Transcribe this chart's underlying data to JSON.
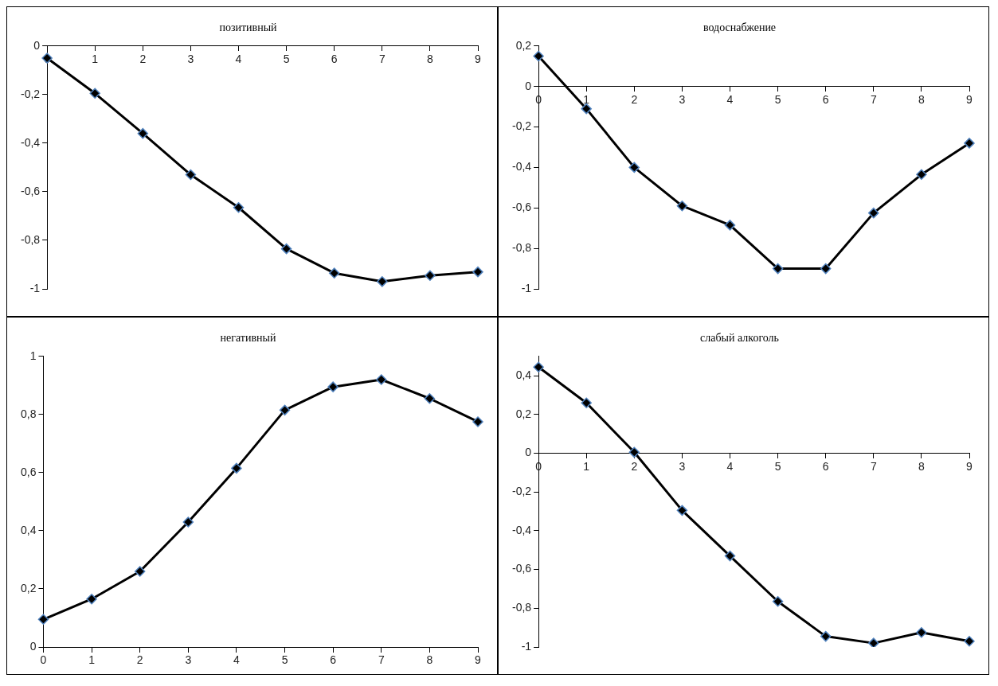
{
  "chart_data": [
    {
      "type": "line",
      "title": "позитивный",
      "categories": [
        "0",
        "1",
        "2",
        "3",
        "4",
        "5",
        "6",
        "7",
        "8",
        "9"
      ],
      "values": [
        -0.05,
        -0.195,
        -0.36,
        -0.53,
        -0.665,
        -0.835,
        -0.935,
        -0.97,
        -0.945,
        -0.93
      ],
      "color": "#000000",
      "ylim": [
        -1,
        0
      ],
      "yticks": [
        -1,
        {
          "value": -0.8,
          "label": "-0,8"
        },
        {
          "value": -0.6,
          "label": "-0,6"
        },
        {
          "value": -0.4,
          "label": "-0,4"
        },
        {
          "value": -0.2,
          "label": "-0,2"
        },
        0
      ],
      "marker": "diamond",
      "line_style": "solid"
    },
    {
      "type": "line",
      "title": "водоснабжение",
      "categories": [
        "0",
        "1",
        "2",
        "3",
        "4",
        "5",
        "6",
        "7",
        "8",
        "9"
      ],
      "values": [
        0.15,
        -0.11,
        -0.4,
        -0.59,
        -0.685,
        -0.9,
        -0.9,
        -0.625,
        -0.435,
        -0.28
      ],
      "color": "#000000",
      "ylim": [
        -1,
        0.2
      ],
      "yticks": [
        -1,
        {
          "value": -0.8,
          "label": "-0,8"
        },
        {
          "value": -0.6,
          "label": "-0,6"
        },
        {
          "value": -0.4,
          "label": "-0,4"
        },
        {
          "value": -0.2,
          "label": "-0,2"
        },
        0,
        {
          "value": 0.2,
          "label": "0,2"
        }
      ],
      "marker": "diamond",
      "line_style": "solid"
    },
    {
      "type": "line",
      "title": "негативный",
      "categories": [
        "0",
        "1",
        "2",
        "3",
        "4",
        "5",
        "6",
        "7",
        "8",
        "9"
      ],
      "values": [
        0.095,
        0.165,
        0.26,
        0.43,
        0.615,
        0.815,
        0.895,
        0.92,
        0.855,
        0.775
      ],
      "color": "#000000",
      "ylim": [
        0,
        1
      ],
      "yticks": [
        0,
        {
          "value": 0.2,
          "label": "0,2"
        },
        {
          "value": 0.4,
          "label": "0,4"
        },
        {
          "value": 0.6,
          "label": "0,6"
        },
        {
          "value": 0.8,
          "label": "0,8"
        },
        1
      ],
      "marker": "diamond",
      "line_style": "solid"
    },
    {
      "type": "line",
      "title": "слабый алкоголь",
      "categories": [
        "0",
        "1",
        "2",
        "3",
        "4",
        "5",
        "6",
        "7",
        "8",
        "9"
      ],
      "values": [
        0.445,
        0.26,
        0.005,
        -0.295,
        -0.53,
        -0.765,
        -0.945,
        -0.98,
        -0.925,
        -0.97
      ],
      "color": "#000000",
      "ylim": [
        -1,
        0.5
      ],
      "yticks": [
        -1,
        {
          "value": -0.8,
          "label": "-0,8"
        },
        {
          "value": -0.6,
          "label": "-0,6"
        },
        {
          "value": -0.4,
          "label": "-0,4"
        },
        {
          "value": -0.2,
          "label": "-0,2"
        },
        0,
        {
          "value": 0.2,
          "label": "0,2"
        },
        {
          "value": 0.4,
          "label": "0,4"
        }
      ],
      "marker": "diamond",
      "line_style": "solid"
    }
  ]
}
